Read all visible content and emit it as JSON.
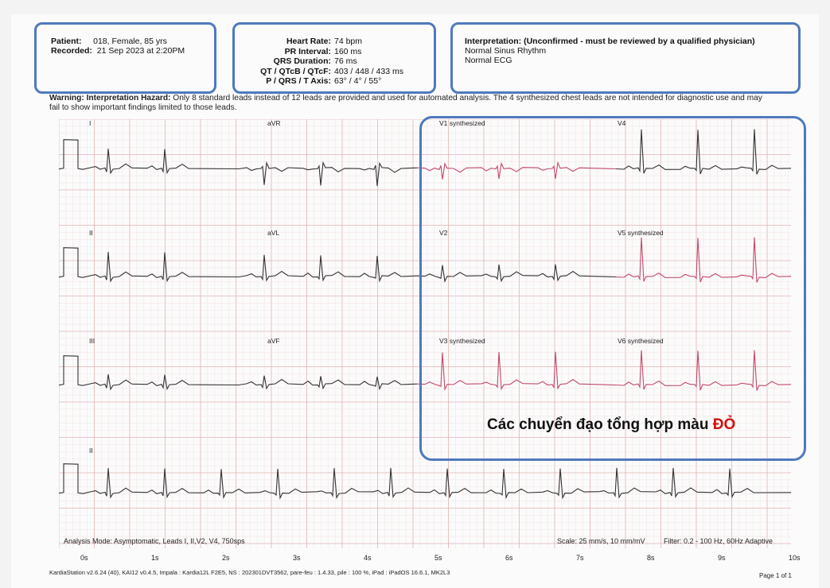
{
  "patient": {
    "patient_label": "Patient:",
    "patient_value": "018, Female, 85 yrs",
    "recorded_label": "Recorded:",
    "recorded_value": "21 Sep 2023 at 2:20PM"
  },
  "measurements": [
    {
      "label": "Heart Rate:",
      "value": "74 bpm"
    },
    {
      "label": "PR Interval:",
      "value": "160 ms"
    },
    {
      "label": "QRS Duration:",
      "value": "76 ms"
    },
    {
      "label": "QT / QTcB / QTcF:",
      "value": "403 / 448 / 433 ms"
    },
    {
      "label": "P / QRS / T Axis:",
      "value": "63° / 4° / 55°"
    }
  ],
  "interpretation": {
    "title": "Interpretation: (Unconfirmed - must be reviewed by a qualified physician)",
    "line1": "Normal Sinus Rhythm",
    "line2": "Normal ECG"
  },
  "warning": {
    "label": "Warning: Interpretation Hazard:",
    "text": "Only 8 standard leads instead of 12 leads are provided and used for automated analysis. The 4 synthesized chest leads are not intended for diagnostic use and may fail to show important findings limited to those leads."
  },
  "leads": {
    "row1": [
      "I",
      "aVR",
      "V1 synthesized",
      "V4"
    ],
    "row2": [
      "II",
      "aVL",
      "V2",
      "V5 synthesized"
    ],
    "row3": [
      "III",
      "aVF",
      "V3 synthesized",
      "V6 synthesized"
    ],
    "row4": [
      "II"
    ]
  },
  "overlay": {
    "text": "Các chuyển đạo tổng hợp màu ",
    "highlight": "ĐỎ"
  },
  "footer": {
    "analysis": "Analysis  Mode: Asymptomatic,     Leads I, II,V2, V4, 750sps",
    "scale": "Scale: 25 mm/s, 10 mm/mV",
    "filter": "Filter:  0.2 - 100 Hz, 60Hz Adaptive",
    "time_ticks": [
      "0s",
      "1s",
      "2s",
      "3s",
      "4s",
      "5s",
      "6s",
      "7s",
      "8s",
      "9s",
      "10s"
    ],
    "software": "KardiaStation v2.6.24 (40), KAI12 v0.4.5, Impala : Kardia12L F2E5, NS : 202301DVT3562, pare-feu : 1.4.33, pile : 100 %, iPad : iPadOS 16.6.1, MK2L3",
    "page": "Page 1 of 1"
  },
  "colors": {
    "grid_major": "#e2b3b3",
    "grid_minor": "#f3dcdc",
    "trace": "#333333",
    "synth_trace": "#c4496a",
    "box_border": "#4f79bd"
  }
}
